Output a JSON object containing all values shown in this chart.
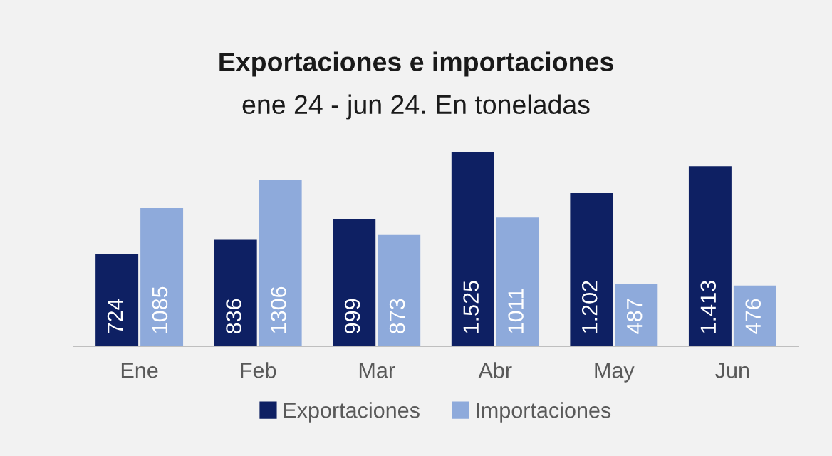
{
  "chart_data": {
    "type": "bar",
    "title": "Exportaciones e importaciones",
    "subtitle": "ene 24 - jun 24. En toneladas",
    "categories": [
      "Ene",
      "Feb",
      "Mar",
      "Abr",
      "May",
      "Jun"
    ],
    "series": [
      {
        "name": "Exportaciones",
        "color": "#0e2063",
        "values": [
          724,
          836,
          999,
          1525,
          1202,
          1413
        ],
        "value_labels": [
          "724",
          "836",
          "999",
          "1.525",
          "1.202",
          "1.413"
        ]
      },
      {
        "name": "Importaciones",
        "color": "#8eaadb",
        "values": [
          1085,
          1306,
          873,
          1011,
          487,
          476
        ],
        "value_labels": [
          "1085",
          "1306",
          "873",
          "1011",
          "487",
          "476"
        ]
      }
    ],
    "legend": "bottom",
    "grid": false
  }
}
